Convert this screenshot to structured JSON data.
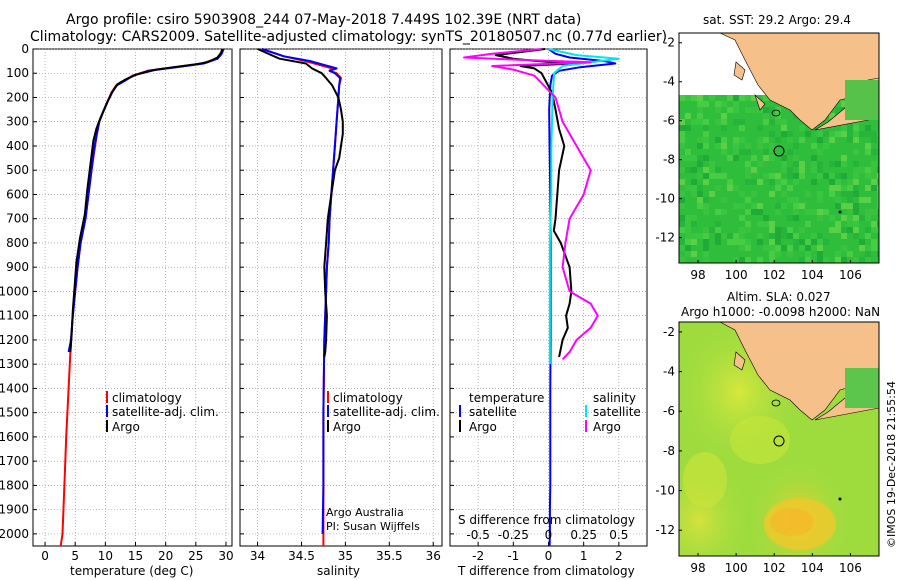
{
  "header": {
    "line1": "Argo profile: csiro 5903908_244 07-May-2018 7.449S 102.39E (NRT data)",
    "line2": "Climatology: CARS2009. Satellite-adjusted climatology: synTS_20180507.nc (0.77d earlier)"
  },
  "colors": {
    "climatology": "#ff0000",
    "satellite": "#0000ff",
    "argo": "#000000",
    "satellite_s": "#00e5ee",
    "argo_s": "#ff00ff",
    "land": "#f4c08a",
    "sst": "#1bbf3a",
    "sla": "#7ed83a"
  },
  "depth_axis": {
    "ticks": [
      "0",
      "100",
      "200",
      "300",
      "400",
      "500",
      "600",
      "700",
      "800",
      "900",
      "1000",
      "1100",
      "1200",
      "1300",
      "1400",
      "1500",
      "1600",
      "1700",
      "1800",
      "1900",
      "2000"
    ],
    "min": 0,
    "max": 2050
  },
  "chart_data": [
    {
      "type": "line",
      "id": "temperature",
      "xlabel": "temperature (deg C)",
      "xticks": [
        "0",
        "5",
        "10",
        "15",
        "20",
        "25",
        "30"
      ],
      "xlim": [
        -2,
        31
      ],
      "ylim": [
        2050,
        -20
      ],
      "series": [
        {
          "name": "climatology",
          "x": [
            29.5,
            29.2,
            28.5,
            26,
            23,
            20,
            17,
            14.5,
            13.2,
            11.8,
            11,
            10.3,
            9.6,
            9,
            8.6,
            8.3,
            7.7,
            7.2,
            6.7,
            5.9,
            5.4,
            5,
            4.6,
            4.3,
            3.9,
            3.5,
            3.2,
            2.9,
            2.6
          ],
          "y": [
            0,
            20,
            40,
            60,
            70,
            80,
            90,
            110,
            130,
            150,
            180,
            220,
            260,
            300,
            350,
            400,
            500,
            600,
            700,
            800,
            900,
            1000,
            1100,
            1200,
            1400,
            1600,
            1800,
            2000,
            2050
          ]
        },
        {
          "name": "satellite-adj. clim.",
          "x": [
            29.6,
            29.3,
            28.6,
            26.3,
            23.3,
            20.3,
            17.2,
            14.6,
            13.3,
            11.9,
            11.1,
            10.3,
            9.6,
            9,
            8.6,
            8.2,
            7.7,
            7.2,
            6.7,
            5.9,
            5.4,
            5,
            4.6,
            4.3,
            3.9
          ],
          "y": [
            0,
            20,
            40,
            60,
            70,
            80,
            90,
            110,
            130,
            150,
            180,
            220,
            260,
            300,
            350,
            400,
            500,
            600,
            700,
            800,
            900,
            1000,
            1100,
            1200,
            1250
          ]
        },
        {
          "name": "Argo",
          "x": [
            29.4,
            29.2,
            28.6,
            26.9,
            24.4,
            21.3,
            18.4,
            15.2,
            13.4,
            12,
            11.2,
            10.5,
            9.8,
            9.1,
            8.5,
            8,
            7.5,
            7,
            6.6,
            5.8,
            5.2,
            4.9,
            4.6,
            4.4,
            4.2
          ],
          "y": [
            0,
            15,
            35,
            55,
            65,
            75,
            85,
            105,
            125,
            145,
            175,
            210,
            250,
            290,
            330,
            380,
            480,
            580,
            680,
            780,
            880,
            980,
            1080,
            1180,
            1250
          ]
        }
      ]
    },
    {
      "type": "line",
      "id": "salinity",
      "xlabel": "salinity",
      "xticks": [
        "34",
        "34.5",
        "35",
        "35.5",
        "36"
      ],
      "xlim": [
        33.8,
        36.1
      ],
      "ylim": [
        2050,
        -20
      ],
      "series": [
        {
          "name": "climatology",
          "x": [
            34.05,
            34.3,
            34.55,
            34.75,
            34.85,
            34.82,
            34.9,
            34.95,
            34.93,
            34.92,
            34.9,
            34.88,
            34.86,
            34.84,
            34.82,
            34.81,
            34.79,
            34.78,
            34.77,
            34.76,
            34.75,
            34.75,
            34.75
          ],
          "y": [
            0,
            30,
            50,
            70,
            80,
            90,
            100,
            120,
            150,
            200,
            300,
            400,
            500,
            600,
            700,
            800,
            900,
            1000,
            1100,
            1200,
            1500,
            1800,
            2050
          ]
        },
        {
          "name": "satellite-adj. clim.",
          "x": [
            34.05,
            34.3,
            34.6,
            34.8,
            34.9,
            34.82,
            34.88,
            34.94,
            34.93,
            34.92,
            34.9,
            34.88,
            34.86,
            34.84,
            34.82,
            34.81,
            34.79,
            34.78,
            34.77,
            34.76,
            34.75,
            34.75,
            34.74
          ],
          "y": [
            0,
            30,
            50,
            70,
            80,
            90,
            100,
            120,
            150,
            200,
            300,
            400,
            500,
            600,
            700,
            800,
            900,
            1000,
            1100,
            1200,
            1500,
            1800,
            2000
          ]
        },
        {
          "name": "Argo",
          "x": [
            34.0,
            34.25,
            34.55,
            34.62,
            34.73,
            34.78,
            34.85,
            34.92,
            34.95,
            34.97,
            34.97,
            34.95,
            34.93,
            34.88,
            34.84,
            34.8,
            34.78,
            34.76,
            34.77,
            34.79,
            34.78,
            34.77,
            34.76
          ],
          "y": [
            0,
            40,
            60,
            80,
            100,
            120,
            150,
            200,
            250,
            300,
            350,
            400,
            450,
            500,
            600,
            700,
            800,
            900,
            1000,
            1100,
            1200,
            1250,
            1270
          ]
        }
      ]
    },
    {
      "type": "line",
      "id": "difference",
      "xlabel": "T difference from climatology",
      "xlabel2": "S difference from climatology",
      "xticks": [
        "-2",
        "-1",
        "0",
        "1",
        "2"
      ],
      "xticks2": [
        "-0.5",
        "-0.25",
        "0",
        "0.25",
        "0.5"
      ],
      "xlim": [
        -2.8,
        2.8
      ],
      "ylim": [
        2050,
        -20
      ],
      "series": [
        {
          "name": "T satellite",
          "x": [
            0,
            0.2,
            0.6,
            1.6,
            1.9,
            0.9,
            0.3,
            0.1,
            0.05,
            0.02,
            0.03,
            0.05,
            0.06,
            0.06,
            0.06,
            0.05,
            0.05,
            0.05,
            0.04,
            0.04,
            0.03
          ],
          "y": [
            0,
            20,
            35,
            50,
            60,
            75,
            90,
            110,
            150,
            250,
            400,
            600,
            800,
            1000,
            1200,
            1400,
            1600,
            1800,
            1900,
            2000,
            2050
          ]
        },
        {
          "name": "T Argo",
          "x": [
            -0.1,
            -1.5,
            -1.0,
            -0.3,
            0.7,
            -0.8,
            -0.4,
            -0.2,
            0.1,
            0.2,
            0.3,
            0.45,
            0.3,
            0.25,
            0.2,
            0.15,
            0.35,
            0.6,
            0.65,
            0.6,
            0.5,
            0.55,
            0.4,
            0.3
          ],
          "y": [
            0,
            25,
            40,
            50,
            60,
            70,
            80,
            100,
            180,
            250,
            330,
            400,
            500,
            600,
            700,
            750,
            800,
            900,
            1000,
            1050,
            1100,
            1150,
            1200,
            1270
          ]
        },
        {
          "name": "S satellite",
          "x": [
            0,
            0.2,
            0.5,
            0.3,
            0.1,
            0.04,
            0.03,
            0.02,
            0.02,
            0.01,
            0.01,
            0.01,
            0.01
          ],
          "y": [
            0,
            25,
            40,
            55,
            70,
            100,
            200,
            400,
            600,
            800,
            1000,
            1200,
            1300
          ]
        },
        {
          "name": "S Argo",
          "x": [
            -0.05,
            -0.4,
            -0.6,
            -0.2,
            0.3,
            -0.4,
            -0.25,
            -0.1,
            0.05,
            0.1,
            0.2,
            0.3,
            0.25,
            0.15,
            0.12,
            0.1,
            0.15,
            0.3,
            0.35,
            0.3,
            0.2,
            0.15,
            0.1
          ],
          "y": [
            0,
            20,
            35,
            45,
            55,
            70,
            85,
            110,
            200,
            300,
            400,
            500,
            600,
            700,
            800,
            900,
            1000,
            1050,
            1100,
            1150,
            1200,
            1250,
            1280
          ]
        }
      ]
    }
  ],
  "legend": {
    "temp_panel": [
      "climatology",
      "satellite-adj. clim.",
      "Argo"
    ],
    "sal_panel": [
      "climatology",
      "satellite-adj. clim.",
      "Argo"
    ],
    "diff_left_title": "temperature",
    "diff_right_title": "salinity",
    "diff_left": [
      "satellite",
      "Argo"
    ],
    "diff_right": [
      "satellite",
      "Argo"
    ]
  },
  "credit": {
    "line1": "Argo Australia",
    "line2": "PI: Susan Wijffels"
  },
  "map_top": {
    "title": "sat. SST: 29.2 Argo: 29.4",
    "xticks": [
      "98",
      "100",
      "102",
      "104",
      "106"
    ],
    "yticks": [
      "-2",
      "-4",
      "-6",
      "-8",
      "-10",
      "-12"
    ],
    "xlim": [
      97,
      107.5
    ],
    "ylim": [
      -13.3,
      -1.5
    ],
    "float": {
      "lon": 102.39,
      "lat": -7.449
    }
  },
  "map_bottom": {
    "title1": "Altim. SLA: 0.027",
    "title2": "Argo h1000: -0.0098 h2000: NaN",
    "xticks": [
      "98",
      "100",
      "102",
      "104",
      "106"
    ],
    "yticks": [
      "-2",
      "-4",
      "-6",
      "-8",
      "-10",
      "-12"
    ],
    "xlim": [
      97,
      107.5
    ],
    "ylim": [
      -13.3,
      -1.5
    ],
    "float": {
      "lon": 102.39,
      "lat": -7.449
    }
  },
  "watermark": "©IMOS 19-Dec-2018 21:55:54"
}
